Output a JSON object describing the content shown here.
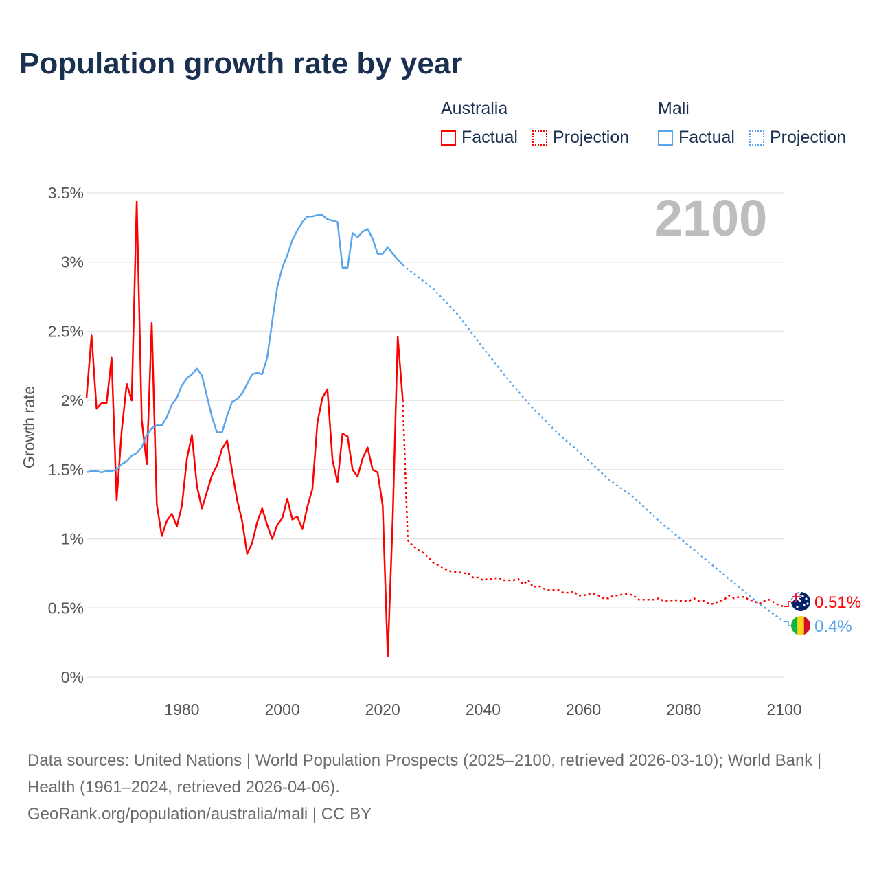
{
  "title": "Population growth rate by year",
  "legend": {
    "groups": [
      {
        "name": "Australia",
        "factual": "Factual",
        "projection": "Projection",
        "color": "#ff0000"
      },
      {
        "name": "Mali",
        "factual": "Factual",
        "projection": "Projection",
        "color": "#5aa5ea"
      }
    ]
  },
  "chart_data": {
    "type": "line",
    "title": "Population growth rate by year",
    "xlabel": "",
    "ylabel": "Growth rate",
    "xlim": [
      1961,
      2100
    ],
    "ylim": [
      0,
      3.5
    ],
    "x_ticks": [
      "1980",
      "2000",
      "2020",
      "2040",
      "2060",
      "2080",
      "2100"
    ],
    "x_tick_values": [
      1980,
      2000,
      2020,
      2040,
      2060,
      2080,
      2100
    ],
    "y_ticks": [
      "0%",
      "0.5%",
      "1%",
      "1.5%",
      "2%",
      "2.5%",
      "3%",
      "3.5%"
    ],
    "y_tick_values": [
      0,
      0.5,
      1,
      1.5,
      2,
      2.5,
      3,
      3.5
    ],
    "grid": true,
    "legend_position": "top-right",
    "year_label": "2100",
    "series": [
      {
        "name": "Australia Factual",
        "color": "#ff0000",
        "style": "solid",
        "x_start": 1961,
        "values": [
          2.02,
          2.47,
          1.94,
          1.98,
          1.98,
          2.31,
          1.28,
          1.78,
          2.12,
          2.0,
          3.44,
          1.86,
          1.54,
          2.56,
          1.25,
          1.02,
          1.13,
          1.18,
          1.09,
          1.24,
          1.58,
          1.75,
          1.38,
          1.22,
          1.34,
          1.46,
          1.53,
          1.65,
          1.71,
          1.49,
          1.28,
          1.13,
          0.89,
          0.97,
          1.12,
          1.22,
          1.1,
          1.0,
          1.1,
          1.15,
          1.29,
          1.14,
          1.16,
          1.07,
          1.23,
          1.36,
          1.84,
          2.02,
          2.08,
          1.57,
          1.41,
          1.76,
          1.74,
          1.5,
          1.45,
          1.58,
          1.66,
          1.5,
          1.48,
          1.24,
          0.15,
          1.15,
          2.46,
          2.0
        ]
      },
      {
        "name": "Australia Projection",
        "color": "#ff0000",
        "style": "dotted",
        "x_start": 2025,
        "values": [
          0.99,
          0.95,
          0.92,
          0.9,
          0.87,
          0.83,
          0.81,
          0.79,
          0.77,
          0.76,
          0.76,
          0.75,
          0.75,
          0.72,
          0.72,
          0.7,
          0.71,
          0.71,
          0.72,
          0.7,
          0.7,
          0.7,
          0.71,
          0.67,
          0.7,
          0.65,
          0.66,
          0.64,
          0.63,
          0.63,
          0.63,
          0.61,
          0.61,
          0.62,
          0.59,
          0.59,
          0.6,
          0.6,
          0.59,
          0.57,
          0.57,
          0.59,
          0.59,
          0.6,
          0.6,
          0.59,
          0.56,
          0.56,
          0.56,
          0.56,
          0.57,
          0.55,
          0.55,
          0.56,
          0.55,
          0.55,
          0.55,
          0.57,
          0.55,
          0.55,
          0.53,
          0.53,
          0.55,
          0.56,
          0.59,
          0.57,
          0.58,
          0.58,
          0.56,
          0.55,
          0.53,
          0.55,
          0.56,
          0.54,
          0.52,
          0.51
        ]
      },
      {
        "name": "Mali Factual",
        "color": "#5aa5ea",
        "style": "solid",
        "x_start": 1961,
        "values": [
          1.48,
          1.49,
          1.49,
          1.48,
          1.49,
          1.49,
          1.5,
          1.54,
          1.56,
          1.6,
          1.62,
          1.66,
          1.75,
          1.8,
          1.82,
          1.82,
          1.88,
          1.97,
          2.02,
          2.11,
          2.16,
          2.19,
          2.23,
          2.18,
          2.03,
          1.88,
          1.77,
          1.77,
          1.89,
          1.99,
          2.01,
          2.05,
          2.12,
          2.19,
          2.2,
          2.19,
          2.31,
          2.57,
          2.82,
          2.96,
          3.05,
          3.16,
          3.23,
          3.29,
          3.33,
          3.33,
          3.34,
          3.34,
          3.31,
          3.3,
          3.29,
          2.96,
          2.96,
          3.21,
          3.18,
          3.22,
          3.24,
          3.17,
          3.06,
          3.06,
          3.11,
          3.06,
          3.02,
          2.98
        ]
      },
      {
        "name": "Mali Projection",
        "color": "#5aa5ea",
        "style": "dotted",
        "x": [
          2024,
          2025,
          2030,
          2035,
          2040,
          2045,
          2050,
          2055,
          2060,
          2065,
          2070,
          2075,
          2080,
          2085,
          2090,
          2095,
          2100
        ],
        "values": [
          2.98,
          2.95,
          2.81,
          2.62,
          2.38,
          2.15,
          1.94,
          1.76,
          1.6,
          1.43,
          1.3,
          1.13,
          0.98,
          0.83,
          0.68,
          0.53,
          0.4
        ]
      }
    ],
    "end_labels": [
      {
        "country": "Australia",
        "text": "0.51%",
        "color": "#ff0000"
      },
      {
        "country": "Mali",
        "text": "0.4%",
        "color": "#5aa5ea"
      }
    ]
  },
  "footer": {
    "sources": "Data sources: United Nations | World Population Prospects (2025–2100, retrieved 2026-03-10); World Bank | Health (1961–2024, retrieved 2026-04-06).",
    "credit": "GeoRank.org/population/australia/mali | CC BY"
  }
}
